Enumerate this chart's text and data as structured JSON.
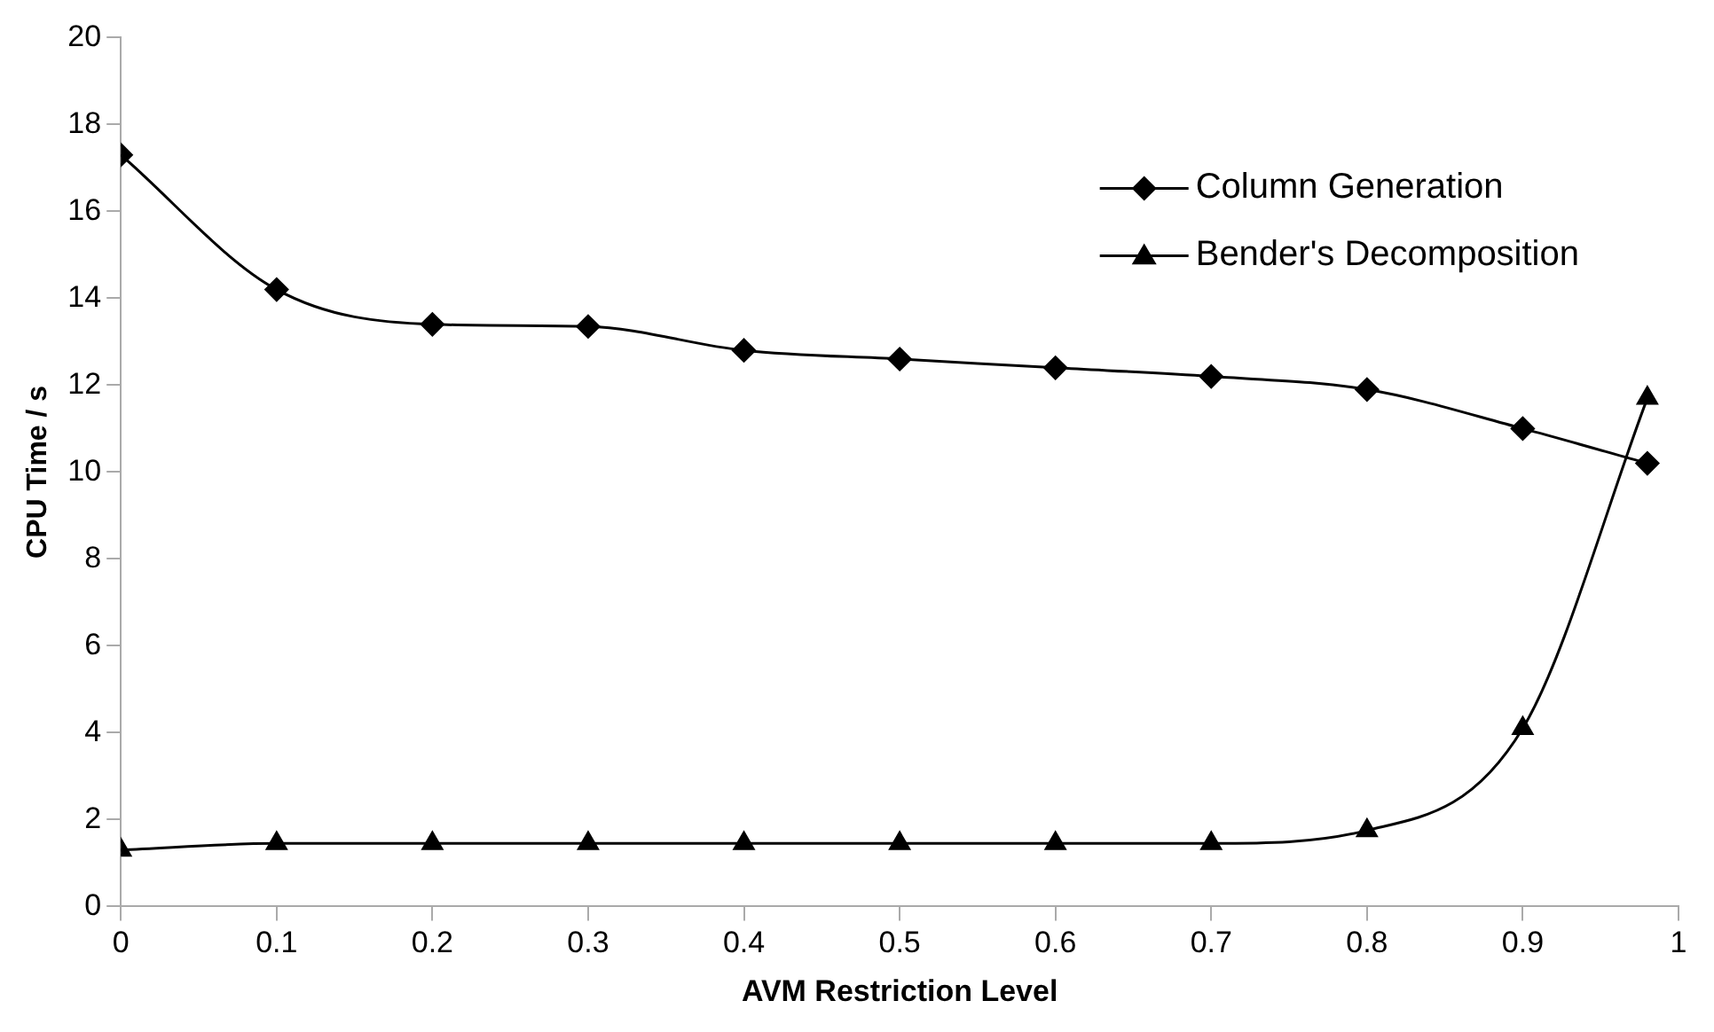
{
  "chart_data": {
    "type": "line",
    "xlabel": "AVM Restriction Level",
    "ylabel": "CPU Time / s",
    "x": [
      0,
      0.1,
      0.2,
      0.3,
      0.4,
      0.5,
      0.6,
      0.7,
      0.8,
      0.9,
      0.98
    ],
    "series": [
      {
        "name": "Column Generation",
        "color": "#000000",
        "marker": "diamond",
        "values": [
          17.3,
          14.2,
          13.4,
          13.35,
          12.8,
          12.6,
          12.4,
          12.2,
          11.9,
          11.0,
          10.2
        ]
      },
      {
        "name": "Bender's Decomposition",
        "color": "#000000",
        "marker": "triangle",
        "values": [
          1.3,
          1.45,
          1.45,
          1.45,
          1.45,
          1.45,
          1.45,
          1.45,
          1.75,
          4.1,
          11.7
        ]
      }
    ],
    "xlim": [
      0,
      1
    ],
    "xticks": [
      0,
      0.1,
      0.2,
      0.3,
      0.4,
      0.5,
      0.6,
      0.7,
      0.8,
      0.9,
      1
    ],
    "ylim": [
      0,
      20
    ],
    "yticks": [
      0,
      2,
      4,
      6,
      8,
      10,
      12,
      14,
      16,
      18,
      20
    ],
    "grid": false,
    "legend": "top right",
    "line_style": "solid"
  }
}
